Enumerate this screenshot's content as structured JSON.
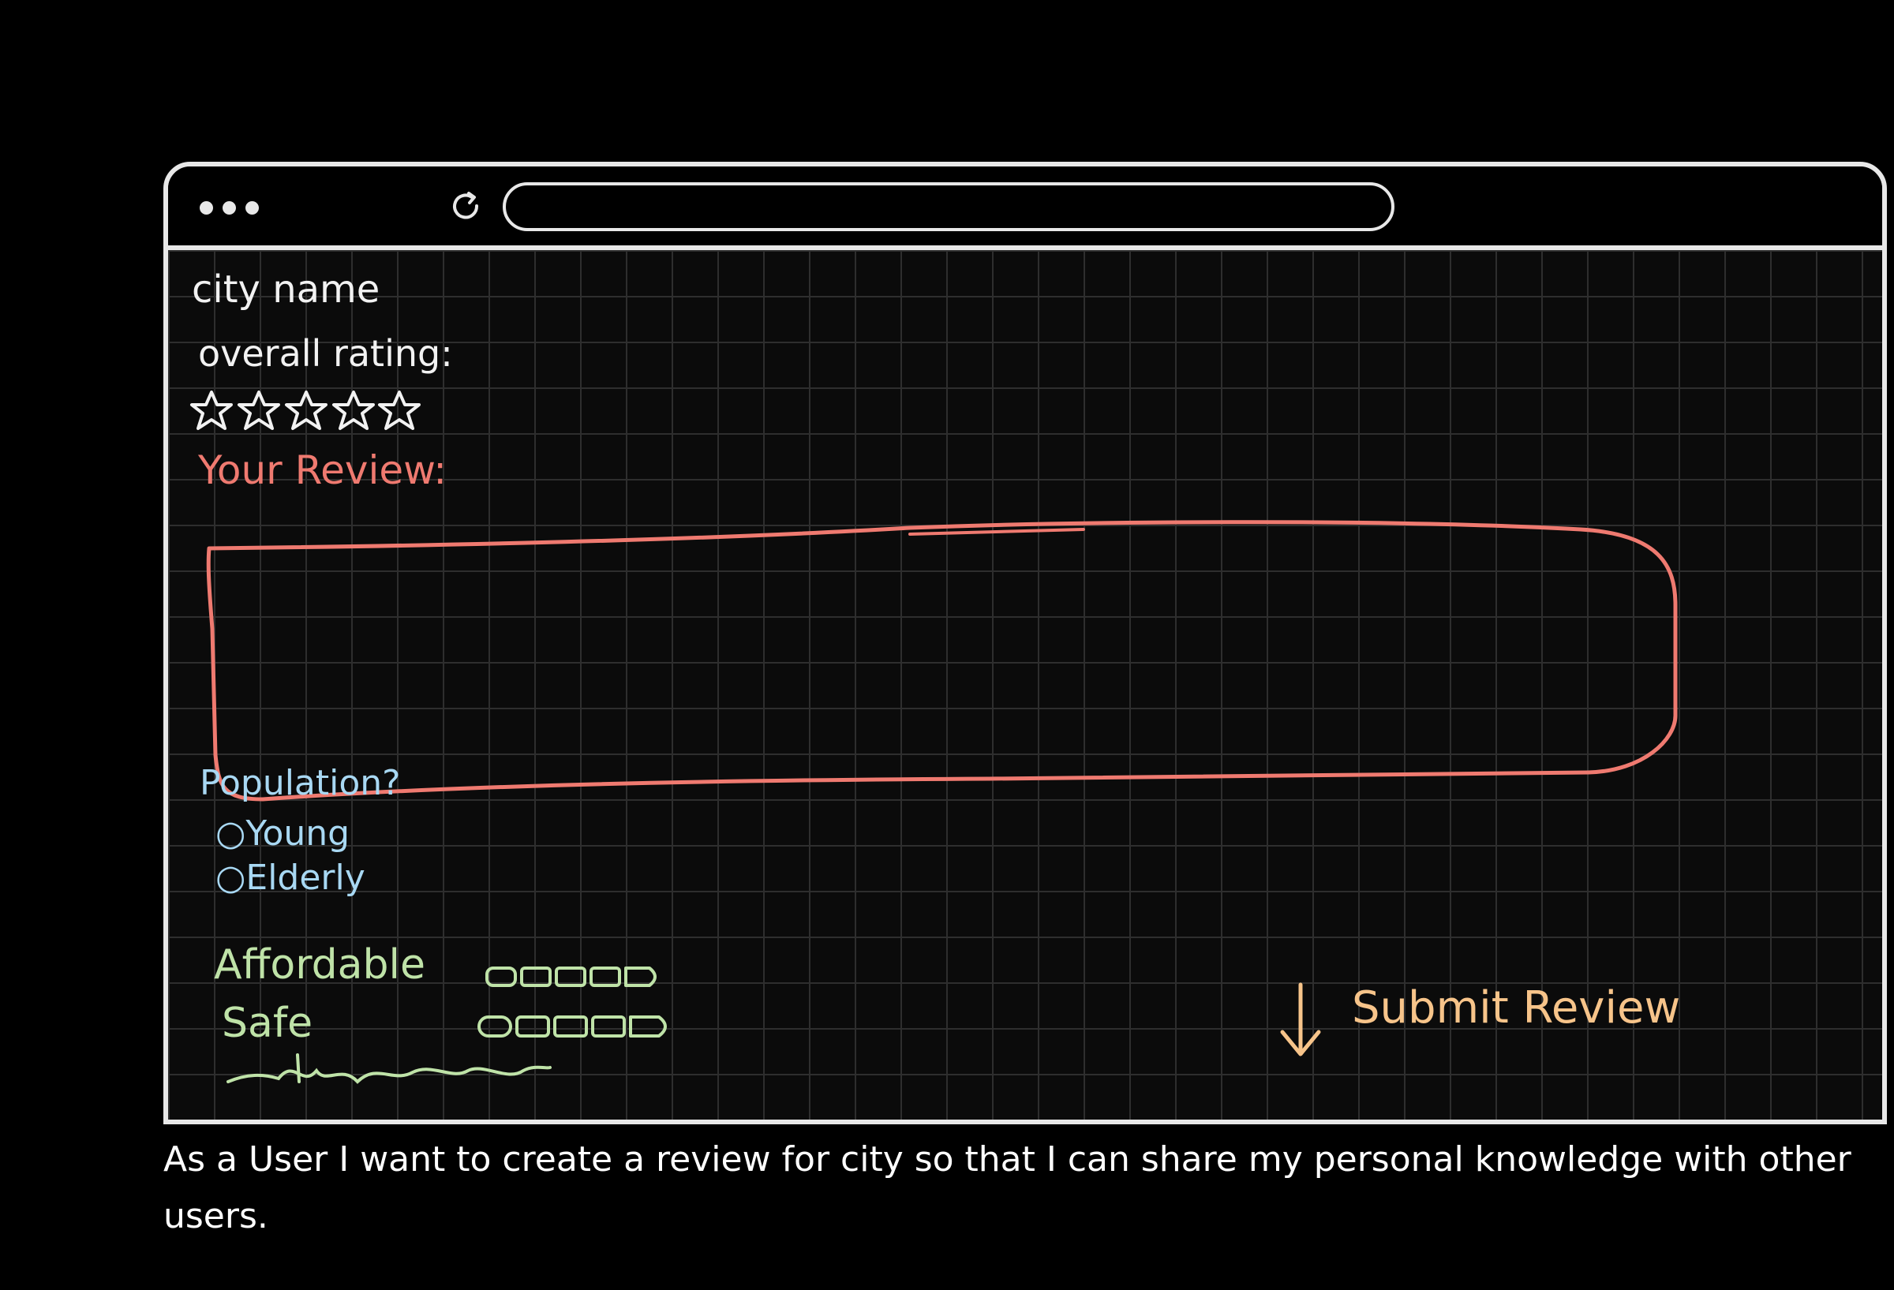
{
  "page": {
    "city_name_label": "city name",
    "overall_rating_label": "overall rating:",
    "rating_stars": 5,
    "review_label": "Your Review:",
    "population_label": "Population?",
    "population_options": [
      "Young",
      "Elderly"
    ],
    "affordable_label": "Affordable",
    "safe_label": "Safe",
    "submit_label": "Submit Review"
  },
  "story": "As a User I want to create a review for city so that I can share my personal knowledge with other users.",
  "colors": {
    "review": "#ef7a70",
    "population": "#a8d8f3",
    "ratings": "#bfe3a8",
    "submit": "#f7c48a"
  }
}
